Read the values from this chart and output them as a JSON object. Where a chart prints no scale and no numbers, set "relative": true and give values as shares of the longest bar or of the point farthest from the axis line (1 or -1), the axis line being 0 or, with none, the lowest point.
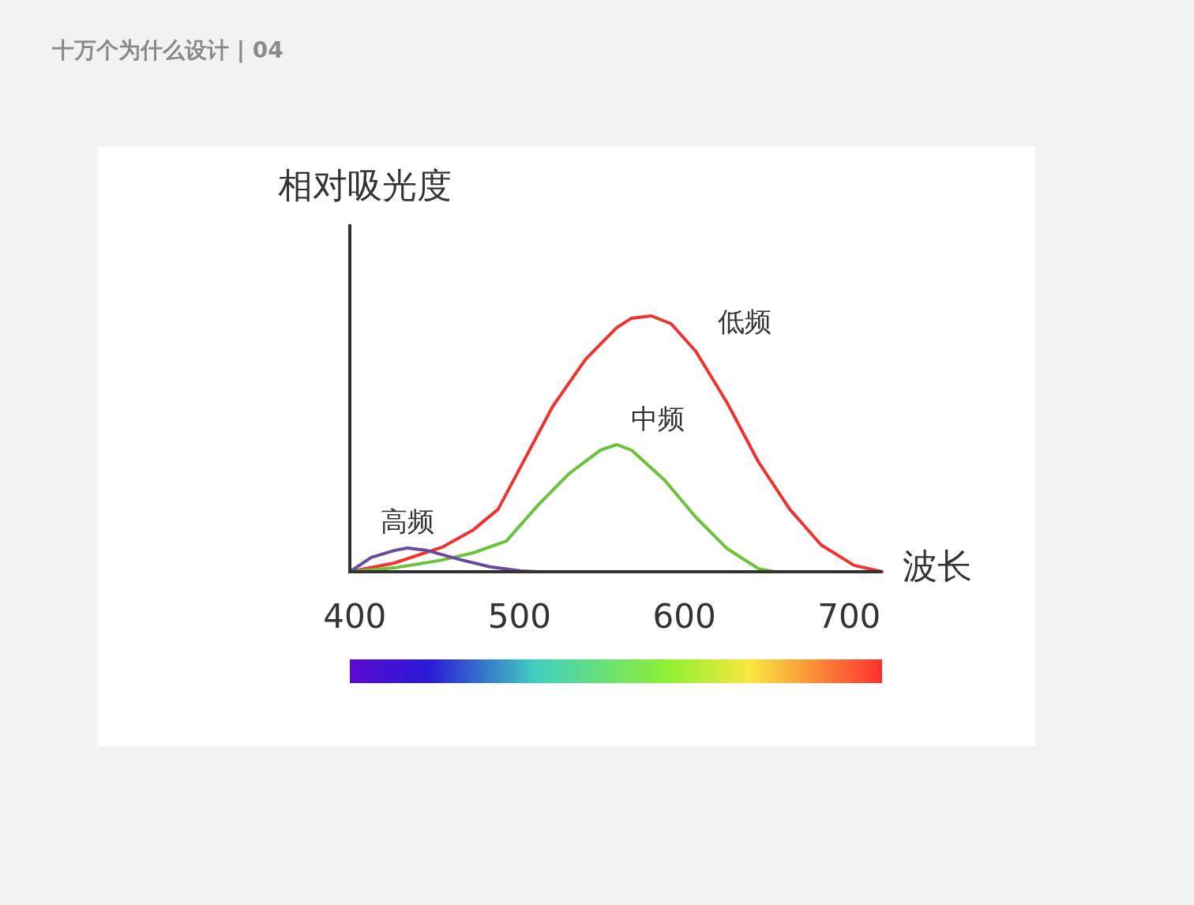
{
  "chart_data": {
    "type": "line",
    "title": "十万个为什么设计 | 04",
    "xlabel": "波长",
    "ylabel": "相对吸光度",
    "relative": true,
    "xlim": [
      397,
      720
    ],
    "xticks": [
      400,
      500,
      600,
      700
    ],
    "legend": false,
    "line_style": "solid",
    "series": [
      {
        "name": "低频",
        "color": "#ee3330",
        "x": [
          397,
          424,
          453,
          472,
          487,
          501,
          520,
          540,
          559,
          568,
          580,
          592,
          607,
          626,
          645,
          664,
          683,
          703,
          720
        ],
        "values": [
          0,
          0.034,
          0.096,
          0.164,
          0.244,
          0.414,
          0.645,
          0.83,
          0.954,
          0.991,
          1,
          0.969,
          0.861,
          0.66,
          0.429,
          0.244,
          0.105,
          0.025,
          0
        ]
      },
      {
        "name": "中频",
        "color": "#6cc23a",
        "x": [
          397,
          424,
          453,
          472,
          492,
          511,
          530,
          549,
          559,
          568,
          588,
          607,
          626,
          645,
          655
        ],
        "values": [
          0,
          0.015,
          0.046,
          0.074,
          0.12,
          0.259,
          0.383,
          0.475,
          0.497,
          0.475,
          0.358,
          0.213,
          0.09,
          0.012,
          0
        ]
      },
      {
        "name": "高频",
        "color": "#6a4a9a",
        "x": [
          397,
          410,
          424,
          432,
          444,
          463,
          482,
          501,
          511
        ],
        "values": [
          0,
          0.056,
          0.083,
          0.093,
          0.083,
          0.049,
          0.019,
          0.003,
          0
        ]
      }
    ]
  }
}
